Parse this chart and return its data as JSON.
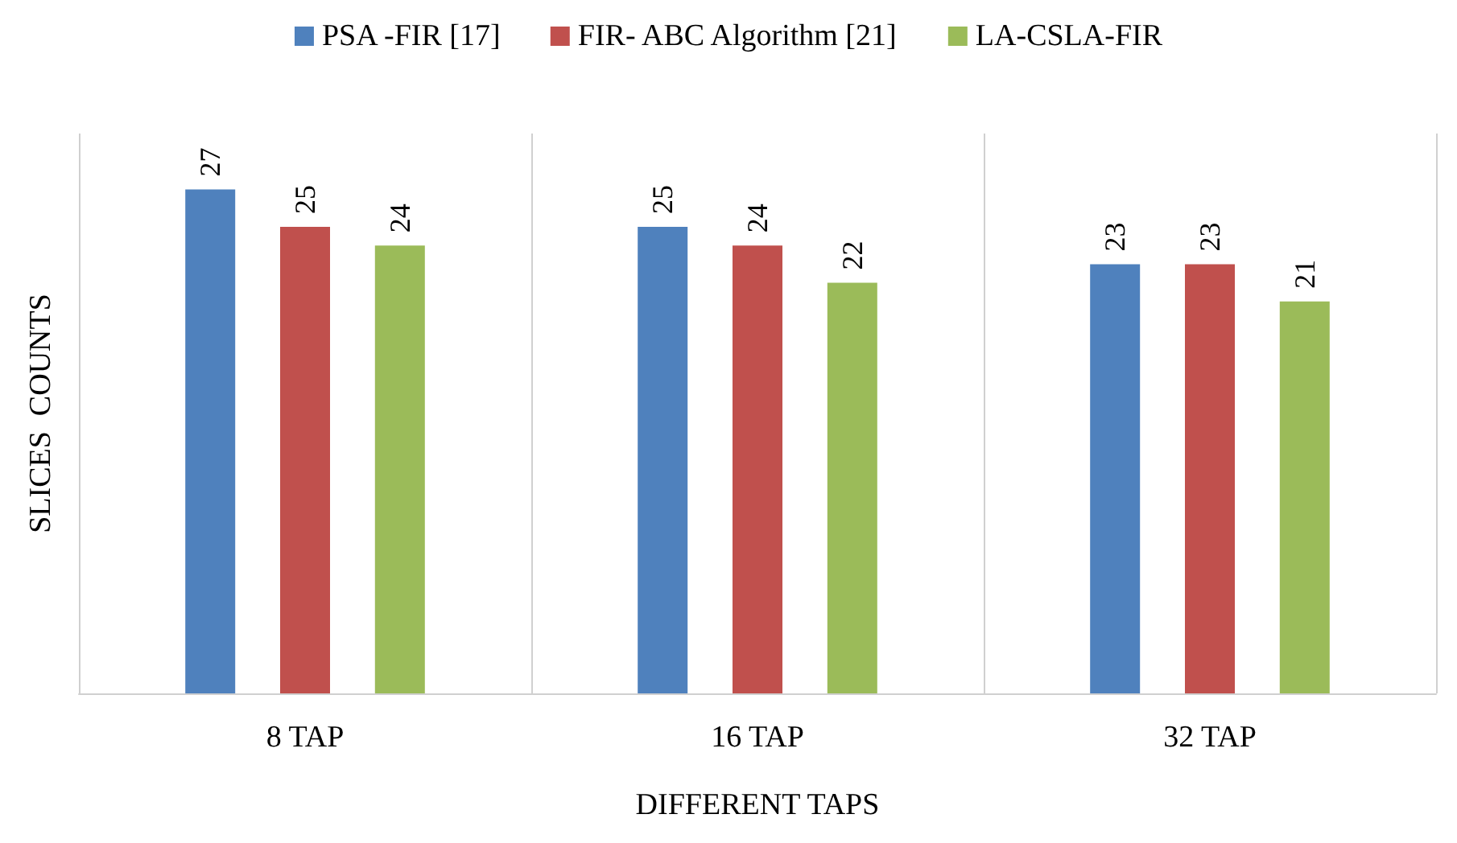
{
  "chart_data": {
    "type": "bar",
    "xlabel": "DIFFERENT TAPS",
    "ylabel": "SLICES  COUNTS",
    "categories": [
      "8 TAP",
      "16 TAP",
      "32 TAP"
    ],
    "series": [
      {
        "name": "PSA -FIR [17]",
        "color": "#4f81bd",
        "values": [
          27,
          25,
          23
        ]
      },
      {
        "name": "FIR- ABC Algorithm [21]",
        "color": "#c0504d",
        "values": [
          25,
          24,
          23
        ]
      },
      {
        "name": "LA-CSLA-FIR",
        "color": "#9bbb59",
        "values": [
          24,
          22,
          21
        ]
      }
    ],
    "data_labels": true,
    "legend": "top",
    "grid": "x"
  }
}
